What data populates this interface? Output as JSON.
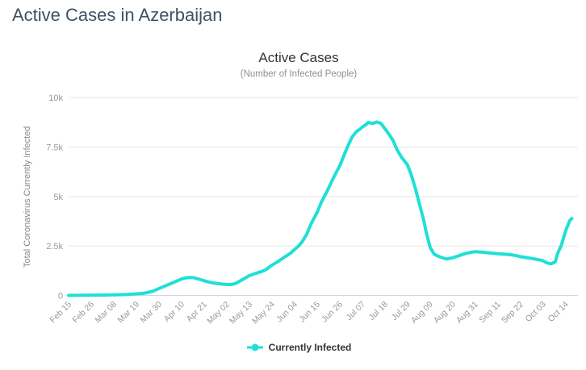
{
  "page": {
    "title": "Active Cases in Azerbaijan"
  },
  "chart": {
    "title": "Active Cases",
    "subtitle": "(Number of Infected People)",
    "y_axis_title": "Total Coronavirus Currently Infected",
    "colors": {
      "line": "#1fe0d6",
      "grid": "#e6e6e6",
      "axis_line": "#ccd6eb",
      "tick_label": "#999999"
    }
  },
  "chart_data": {
    "type": "line",
    "title": "Active Cases",
    "subtitle": "(Number of Infected People)",
    "xlabel": "",
    "ylabel": "Total Coronavirus Currently Infected",
    "ylim": [
      0,
      10000
    ],
    "y_ticks": [
      {
        "value": 0,
        "label": "0"
      },
      {
        "value": 2500,
        "label": "2.5k"
      },
      {
        "value": 5000,
        "label": "5k"
      },
      {
        "value": 7500,
        "label": "7.5k"
      },
      {
        "value": 10000,
        "label": "10k"
      }
    ],
    "x_tick_labels": [
      "Feb 15",
      "Feb 26",
      "Mar 08",
      "Mar 19",
      "Mar 30",
      "Apr 10",
      "Apr 21",
      "May 02",
      "May 13",
      "May 24",
      "Jun 04",
      "Jun 15",
      "Jun 26",
      "Jul 07",
      "Jul 18",
      "Jul 29",
      "Aug 09",
      "Aug 20",
      "Aug 31",
      "Sep 11",
      "Sep 22",
      "Oct 03",
      "Oct 14"
    ],
    "x_tick_interval_days": 11,
    "x_max_days": 248,
    "grid": "horizontal",
    "legend_position": "bottom",
    "series": [
      {
        "name": "Currently Infected",
        "points_day_value": [
          [
            0,
            0
          ],
          [
            6,
            10
          ],
          [
            11,
            15
          ],
          [
            17,
            20
          ],
          [
            22,
            30
          ],
          [
            28,
            45
          ],
          [
            33,
            80
          ],
          [
            36,
            100
          ],
          [
            38,
            140
          ],
          [
            41,
            210
          ],
          [
            44,
            350
          ],
          [
            47,
            480
          ],
          [
            50,
            610
          ],
          [
            53,
            740
          ],
          [
            55,
            830
          ],
          [
            57,
            890
          ],
          [
            59,
            905
          ],
          [
            61,
            895
          ],
          [
            63,
            840
          ],
          [
            66,
            740
          ],
          [
            69,
            660
          ],
          [
            72,
            605
          ],
          [
            75,
            570
          ],
          [
            77,
            555
          ],
          [
            79,
            550
          ],
          [
            81,
            590
          ],
          [
            83,
            700
          ],
          [
            85,
            820
          ],
          [
            88,
            1000
          ],
          [
            91,
            1110
          ],
          [
            94,
            1210
          ],
          [
            96,
            1300
          ],
          [
            99,
            1530
          ],
          [
            102,
            1720
          ],
          [
            105,
            1930
          ],
          [
            108,
            2130
          ],
          [
            110,
            2320
          ],
          [
            112,
            2500
          ],
          [
            114,
            2760
          ],
          [
            116,
            3100
          ],
          [
            118,
            3600
          ],
          [
            121,
            4200
          ],
          [
            123,
            4700
          ],
          [
            126,
            5300
          ],
          [
            129,
            5950
          ],
          [
            132,
            6550
          ],
          [
            134,
            7050
          ],
          [
            136,
            7550
          ],
          [
            138,
            8000
          ],
          [
            140,
            8260
          ],
          [
            143,
            8500
          ],
          [
            145,
            8650
          ],
          [
            146,
            8740
          ],
          [
            148,
            8690
          ],
          [
            150,
            8760
          ],
          [
            152,
            8700
          ],
          [
            154,
            8430
          ],
          [
            156,
            8150
          ],
          [
            158,
            7820
          ],
          [
            160,
            7350
          ],
          [
            162,
            7000
          ],
          [
            165,
            6600
          ],
          [
            167,
            6050
          ],
          [
            169,
            5350
          ],
          [
            171,
            4550
          ],
          [
            173,
            3750
          ],
          [
            174,
            3250
          ],
          [
            176,
            2430
          ],
          [
            178,
            2080
          ],
          [
            181,
            1940
          ],
          [
            184,
            1840
          ],
          [
            187,
            1900
          ],
          [
            190,
            2010
          ],
          [
            193,
            2110
          ],
          [
            196,
            2180
          ],
          [
            198,
            2210
          ],
          [
            201,
            2190
          ],
          [
            204,
            2160
          ],
          [
            207,
            2130
          ],
          [
            209,
            2110
          ],
          [
            212,
            2090
          ],
          [
            215,
            2060
          ],
          [
            218,
            2010
          ],
          [
            220,
            1960
          ],
          [
            223,
            1910
          ],
          [
            226,
            1860
          ],
          [
            229,
            1800
          ],
          [
            231,
            1750
          ],
          [
            233,
            1640
          ],
          [
            235,
            1600
          ],
          [
            237,
            1700
          ],
          [
            238,
            2100
          ],
          [
            240,
            2550
          ],
          [
            242,
            3260
          ],
          [
            244,
            3780
          ],
          [
            245,
            3890
          ]
        ]
      }
    ]
  }
}
